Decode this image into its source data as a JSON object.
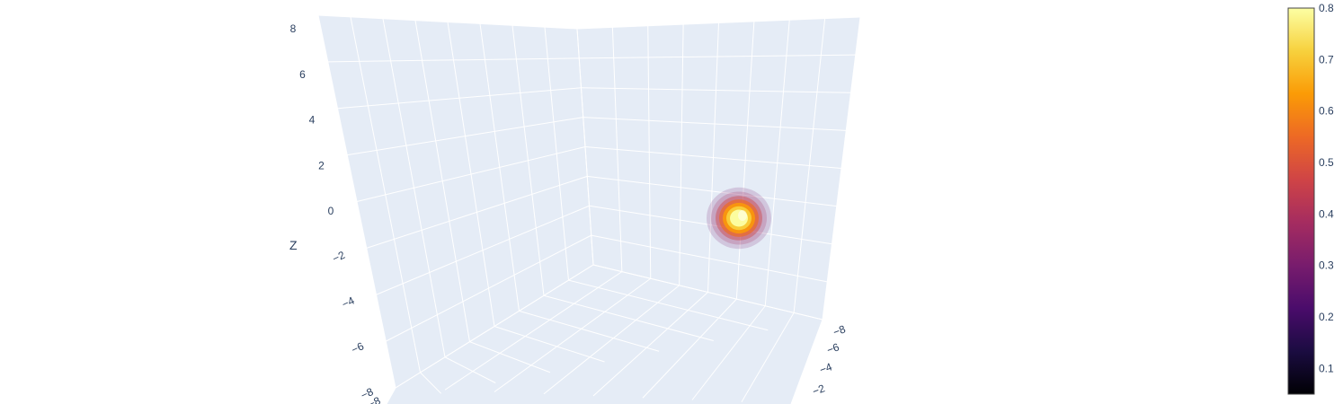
{
  "chart_data": {
    "type": "volume",
    "title": "",
    "scene": {
      "background": "#e5ecf6",
      "grid_color": "#ffffff",
      "z_axis": {
        "title": "Z",
        "range": [
          -8,
          8
        ],
        "ticks": [
          "8",
          "6",
          "4",
          "2",
          "0",
          "−2",
          "−4",
          "−6",
          "−8"
        ]
      },
      "y_axis": {
        "title": "",
        "ticks": [
          "−8",
          "−6",
          "−4",
          "−2"
        ]
      },
      "x_axis": {
        "title": "",
        "ticks": [
          "−8"
        ]
      }
    },
    "volume": {
      "center": [
        0,
        0,
        0
      ],
      "isomin": 0.05,
      "isomax": 0.8,
      "colorscale": "Inferno"
    },
    "colorbar": {
      "range": [
        0.05,
        0.8
      ],
      "tick_values": [
        0.1,
        0.2,
        0.3,
        0.4,
        0.5,
        0.6,
        0.7,
        0.8
      ],
      "tick_labels": [
        "0.1",
        "0.2",
        "0.3",
        "0.4",
        "0.5",
        "0.6",
        "0.7",
        "0.8"
      ],
      "colors": [
        "#000004",
        "#1b0c41",
        "#4a0c6b",
        "#781c6d",
        "#a52c60",
        "#cf4446",
        "#ed6925",
        "#fb9b06",
        "#f7d13d",
        "#fcffa4"
      ]
    }
  }
}
